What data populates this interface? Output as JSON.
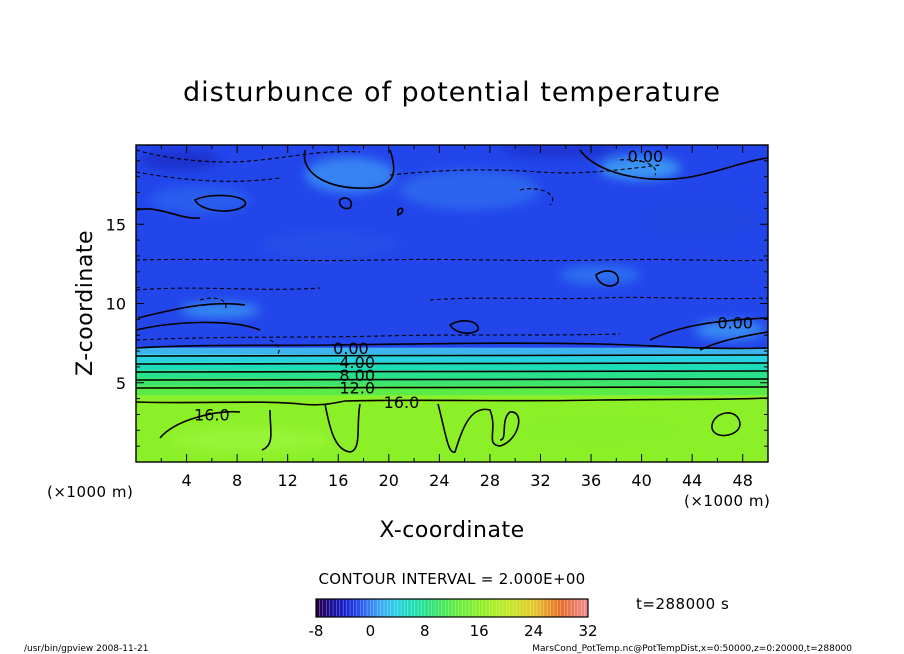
{
  "chart_data": {
    "type": "heatmap",
    "title": "disturbunce of potential temperature",
    "xlabel": "X-coordinate",
    "ylabel": "Z-coordinate",
    "x_unit_left": "(×1000 m)",
    "x_unit_right": "(×1000 m)",
    "xlim": [
      0,
      50
    ],
    "ylim": [
      0,
      20
    ],
    "x_ticks": [
      4,
      8,
      12,
      16,
      20,
      24,
      28,
      32,
      36,
      40,
      44,
      48
    ],
    "y_ticks": [
      5,
      10,
      15
    ],
    "contour_interval_text": "CONTOUR INTERVAL = 2.000E+00",
    "time_text": "t=288000 s",
    "colorbar": {
      "min": -8,
      "max": 32,
      "ticks": [
        -8,
        0,
        8,
        16,
        24,
        32
      ]
    },
    "contour_labels": [
      {
        "text": "0.00",
        "x": 40.3,
        "z": 19.3
      },
      {
        "text": "0.00",
        "x": 47.4,
        "z": 8.8
      },
      {
        "text": "0.00",
        "x": 17.0,
        "z": 7.2
      },
      {
        "text": "4.00",
        "x": 17.5,
        "z": 6.3
      },
      {
        "text": "8.00",
        "x": 17.5,
        "z": 5.5
      },
      {
        "text": "12.0",
        "x": 17.5,
        "z": 4.7
      },
      {
        "text": "16.0",
        "x": 21.0,
        "z": 3.8
      },
      {
        "text": "16.0",
        "x": 6.0,
        "z": 3.0
      }
    ],
    "layers": [
      {
        "z_top": 20.0,
        "z_bottom": 7.2,
        "value": -2
      },
      {
        "z_top": 7.2,
        "z_bottom": 6.8,
        "value": 2
      },
      {
        "z_top": 6.8,
        "z_bottom": 6.3,
        "value": 4
      },
      {
        "z_top": 6.3,
        "z_bottom": 5.8,
        "value": 6
      },
      {
        "z_top": 5.8,
        "z_bottom": 5.3,
        "value": 8
      },
      {
        "z_top": 5.3,
        "z_bottom": 4.8,
        "value": 10
      },
      {
        "z_top": 4.8,
        "z_bottom": 4.2,
        "value": 12
      },
      {
        "z_top": 4.2,
        "z_bottom": 0.0,
        "value": 16
      }
    ]
  },
  "colors": {
    "deep_blue": "#1f2fd6",
    "blue": "#2a5af0",
    "light_blue": "#3a8cf5",
    "cyan": "#2fc6e0",
    "teal": "#22d8a8",
    "green": "#3ee070",
    "lime": "#8ef22a"
  },
  "footer": {
    "left": "/usr/bin/gpview   2008-11-21",
    "right": "MarsCond_PotTemp.nc@PotTempDist,x=0:50000,z=0:20000,t=288000"
  }
}
